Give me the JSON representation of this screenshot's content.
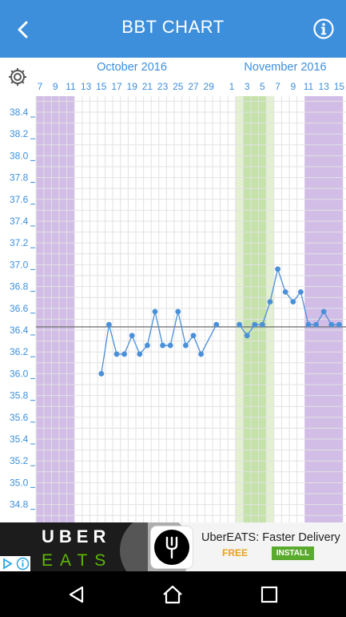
{
  "appbar": {
    "title": "BBT CHART",
    "back_icon": "back-arrow-icon",
    "info_icon": "info-icon",
    "color": "#3d8fdc"
  },
  "chart_data": {
    "type": "line",
    "months": [
      {
        "label": "October 2016",
        "start_day": 7
      },
      {
        "label": "November 2016",
        "start_day": 1
      }
    ],
    "x_tick_labels": [
      "7",
      "9",
      "11",
      "13",
      "15",
      "17",
      "19",
      "21",
      "23",
      "25",
      "27",
      "29",
      "1",
      "3",
      "5",
      "7",
      "9",
      "11",
      "13",
      "15"
    ],
    "y_tick_labels": [
      "38.4",
      "38.2",
      "38.0",
      "37.8",
      "37.6",
      "37.4",
      "37.2",
      "37.0",
      "36.8",
      "36.6",
      "36.4",
      "36.2",
      "36.0",
      "35.8",
      "35.6",
      "35.4",
      "35.2",
      "35.0",
      "34.8"
    ],
    "ylim": [
      34.7,
      38.5
    ],
    "cover_line": 36.43,
    "series": [
      {
        "values": [
          [
            "Oct 15",
            36.0
          ],
          [
            "Oct 16",
            36.45
          ],
          [
            "Oct 17",
            36.18
          ],
          [
            "Oct 18",
            36.18
          ],
          [
            "Oct 19",
            36.35
          ],
          [
            "Oct 20",
            36.18
          ],
          [
            "Oct 21",
            36.26
          ],
          [
            "Oct 22",
            36.57
          ],
          [
            "Oct 23",
            36.26
          ],
          [
            "Oct 24",
            36.26
          ],
          [
            "Oct 25",
            36.57
          ],
          [
            "Oct 26",
            36.26
          ],
          [
            "Oct 27",
            36.35
          ],
          [
            "Oct 28",
            36.18
          ],
          [
            "Oct 30",
            36.45
          ]
        ]
      },
      {
        "values": [
          [
            "Nov 2",
            36.45
          ],
          [
            "Nov 3",
            36.35
          ],
          [
            "Nov 4",
            36.45
          ],
          [
            "Nov 5",
            36.45
          ],
          [
            "Nov 6",
            36.66
          ],
          [
            "Nov 7",
            36.96
          ],
          [
            "Nov 8",
            36.75
          ],
          [
            "Nov 9",
            36.66
          ],
          [
            "Nov 10",
            36.75
          ],
          [
            "Nov 11",
            36.45
          ],
          [
            "Nov 12",
            36.45
          ],
          [
            "Nov 13",
            36.57
          ],
          [
            "Nov 14",
            36.45
          ],
          [
            "Nov 15",
            36.45
          ]
        ]
      }
    ],
    "bands": [
      {
        "kind": "period",
        "from": "Oct 7",
        "to": "Oct 11",
        "color": "#d2bde6"
      },
      {
        "kind": "fertile",
        "from": "Nov 2",
        "to": "Nov 4",
        "color": "#e3f0d2"
      },
      {
        "kind": "fertile-peak",
        "from": "Nov 3",
        "to": "Nov 5",
        "color": "#c4e2aa"
      },
      {
        "kind": "fertile",
        "from": "Nov 6",
        "to": "Nov 6",
        "color": "#e3f0d2"
      },
      {
        "kind": "period",
        "from": "Nov 11",
        "to": "Nov 15",
        "color": "#d2bde6"
      }
    ],
    "line_color": "#4a90d9",
    "label_color": "#3d8fdc",
    "grid": true
  },
  "ad": {
    "brand_top": "UBER",
    "brand_bottom": "EATS",
    "title": "UberEATS: Faster Delivery",
    "price": "FREE",
    "install_label": "INSTALL",
    "logo_icon": "fork-icon",
    "badges": [
      "ad-choices-icon",
      "ad-info-icon"
    ]
  },
  "navbar": {
    "back_icon": "nav-back-icon",
    "home_icon": "nav-home-icon",
    "recents_icon": "nav-recents-icon"
  }
}
